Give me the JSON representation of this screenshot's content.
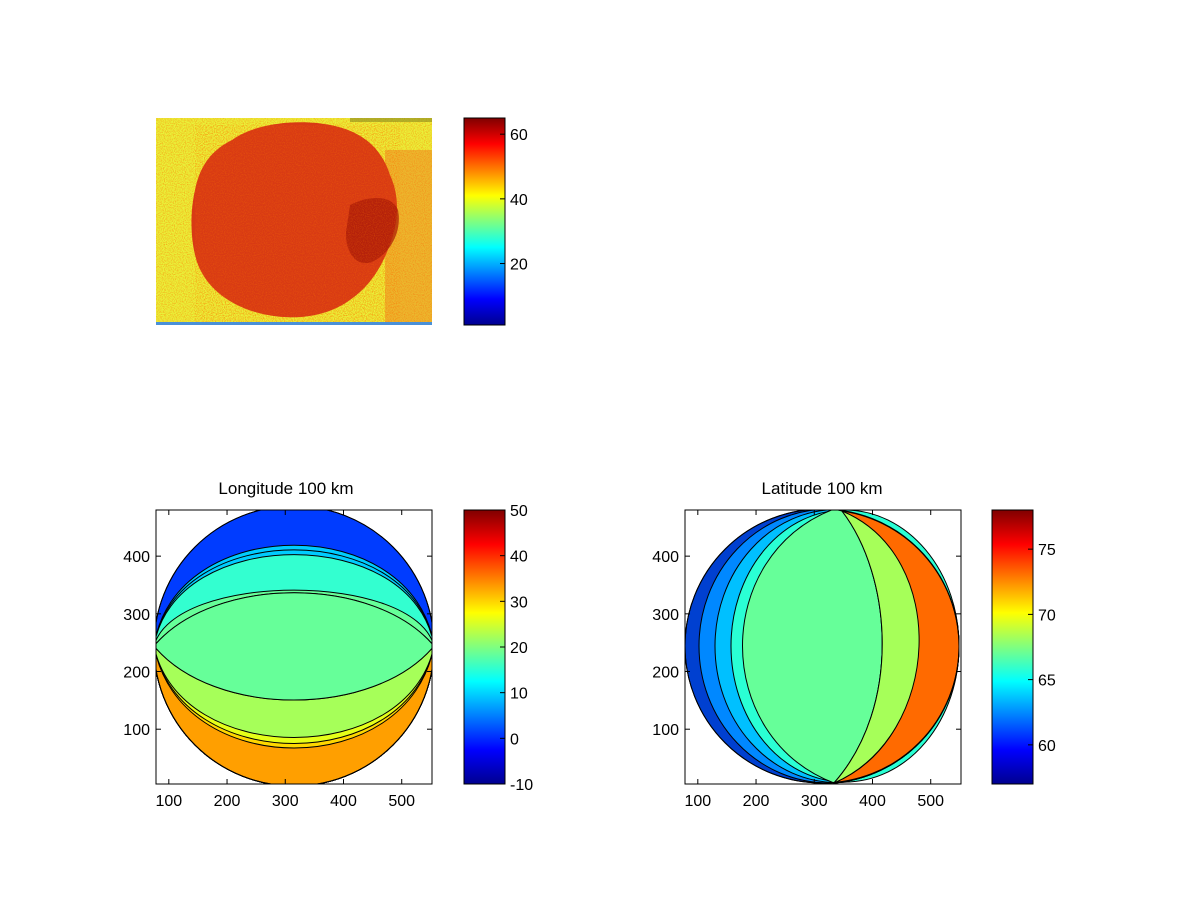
{
  "chart_data": [
    {
      "type": "heatmap",
      "title": "",
      "description_colormap": "jet",
      "colorbar": {
        "ticks": [
          20,
          40,
          60
        ],
        "lim": [
          1,
          65
        ]
      },
      "axes_visible": false
    },
    {
      "type": "heatmap",
      "title": "Longitude 100 km",
      "xlim": [
        78,
        552
      ],
      "ylim": [
        5,
        480
      ],
      "xticks": [
        100,
        200,
        300,
        400,
        500
      ],
      "yticks": [
        100,
        200,
        300,
        400
      ],
      "colorbar": {
        "ticks": [
          -10,
          0,
          10,
          20,
          30,
          40,
          50
        ],
        "lim": [
          -10,
          50
        ]
      },
      "contour_levels": [
        {
          "value": 10,
          "color": "#00ccff"
        },
        {
          "value": 13,
          "color": "#33ffd0"
        },
        {
          "value": 20,
          "color": "#66ff99"
        },
        {
          "value": 24,
          "color": "#a6ff59"
        },
        {
          "value": 28,
          "color": "#e6ff19"
        },
        {
          "value": 31,
          "color": "#ffd700"
        },
        {
          "value": 34,
          "color": "#ff9f00"
        }
      ]
    },
    {
      "type": "heatmap",
      "title": "Latitude 100 km",
      "xlim": [
        78,
        552
      ],
      "ylim": [
        5,
        480
      ],
      "xticks": [
        100,
        200,
        300,
        400,
        500
      ],
      "yticks": [
        100,
        200,
        300,
        400
      ],
      "colorbar": {
        "ticks": [
          60,
          65,
          70,
          75
        ],
        "lim": [
          57,
          78
        ]
      },
      "contour_levels": [
        {
          "value": 62,
          "color": "#0088ff"
        },
        {
          "value": 63.5,
          "color": "#00c0ff"
        },
        {
          "value": 65,
          "color": "#2affd4"
        },
        {
          "value": 67,
          "color": "#66ff99"
        },
        {
          "value": 68.5,
          "color": "#a6ff59"
        },
        {
          "value": 70,
          "color": "#f0ff10"
        },
        {
          "value": 71.5,
          "color": "#ffcc00"
        }
      ]
    }
  ]
}
